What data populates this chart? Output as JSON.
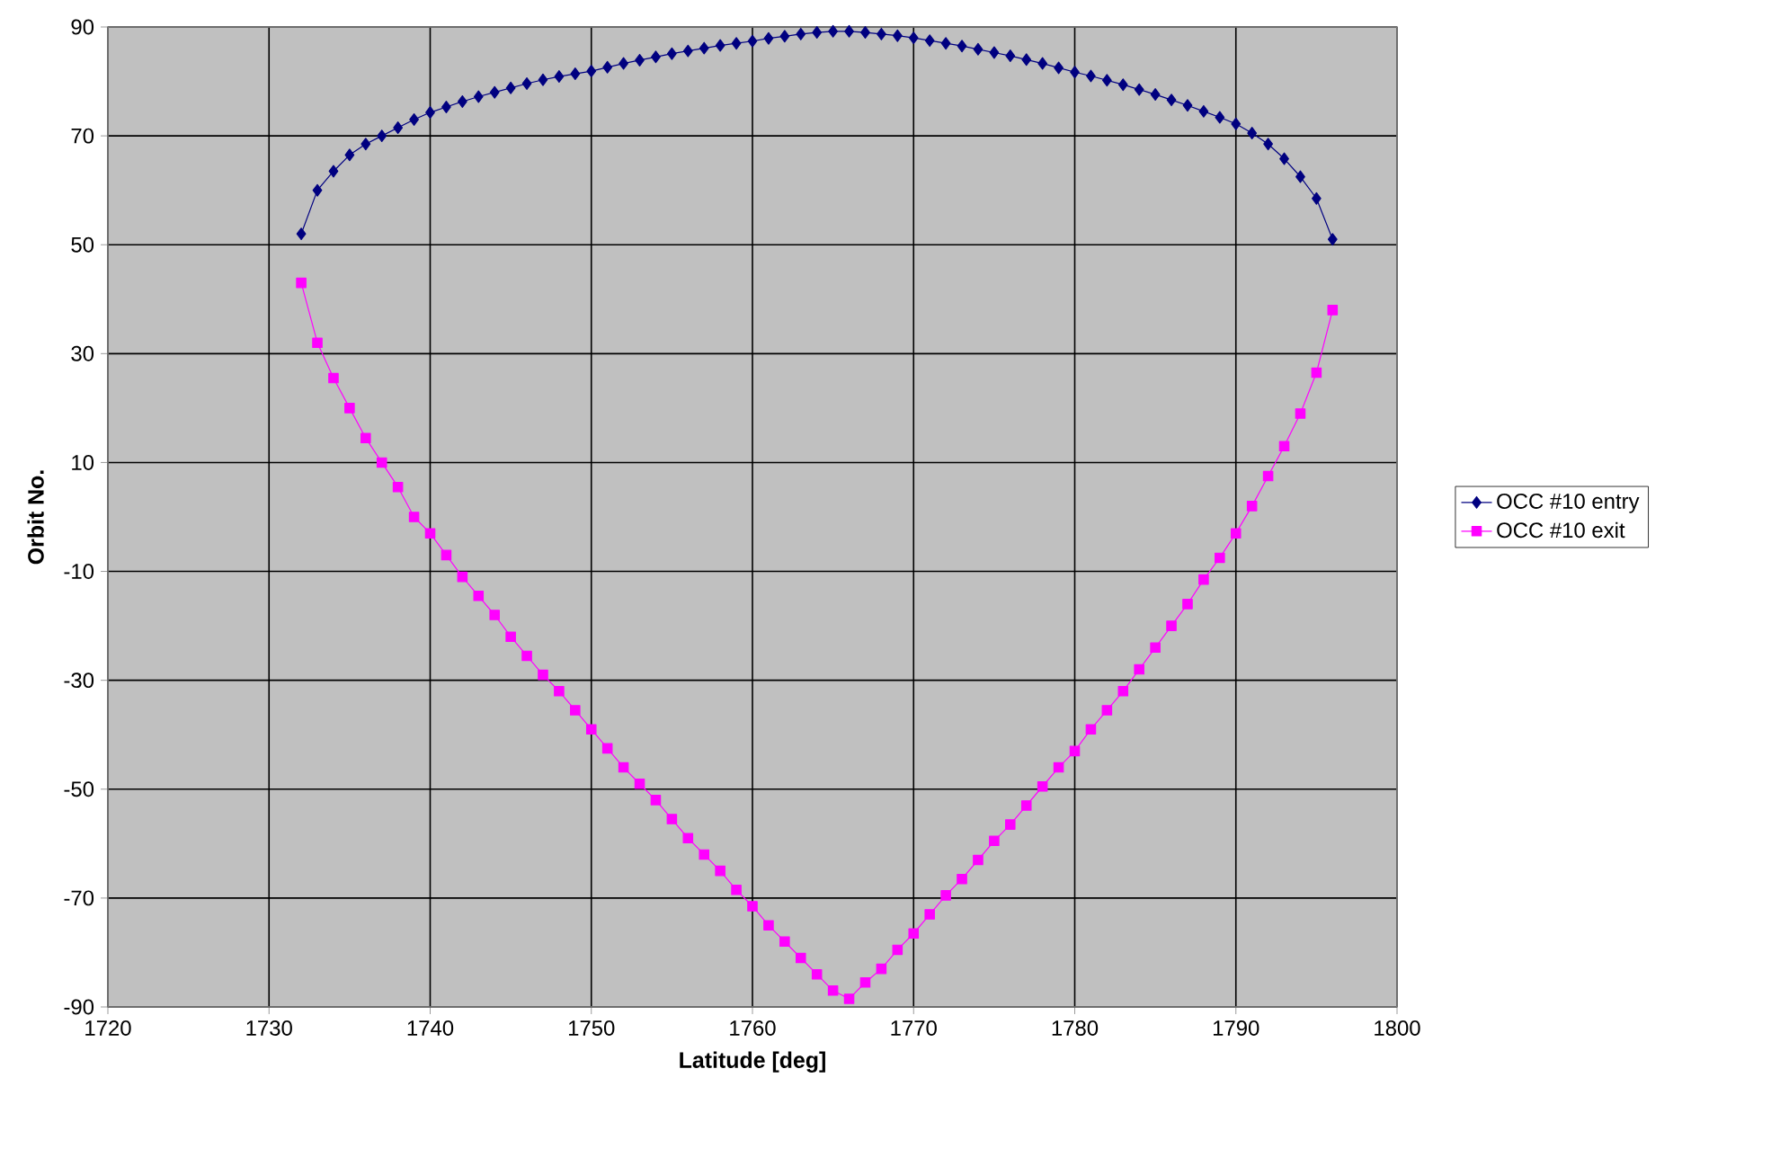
{
  "chart_data": {
    "type": "line",
    "xlabel": "Latitude [deg]",
    "ylabel": "Orbit No.",
    "x": [
      1732,
      1733,
      1734,
      1735,
      1736,
      1737,
      1738,
      1739,
      1740,
      1741,
      1742,
      1743,
      1744,
      1745,
      1746,
      1747,
      1748,
      1749,
      1750,
      1751,
      1752,
      1753,
      1754,
      1755,
      1756,
      1757,
      1758,
      1759,
      1760,
      1761,
      1762,
      1763,
      1764,
      1765,
      1766,
      1767,
      1768,
      1769,
      1770,
      1771,
      1772,
      1773,
      1774,
      1775,
      1776,
      1777,
      1778,
      1779,
      1780,
      1781,
      1782,
      1783,
      1784,
      1785,
      1786,
      1787,
      1788,
      1789,
      1790,
      1791,
      1792,
      1793,
      1794,
      1795,
      1796
    ],
    "series": [
      {
        "name": "OCC #10 entry",
        "color": "#000080",
        "marker": "diamond",
        "values": [
          52,
          60,
          63.5,
          66.5,
          68.5,
          70,
          71.5,
          73,
          74.3,
          75.3,
          76.3,
          77.2,
          78,
          78.8,
          79.6,
          80.3,
          80.9,
          81.4,
          81.9,
          82.6,
          83.3,
          83.9,
          84.5,
          85.1,
          85.6,
          86.1,
          86.6,
          87,
          87.4,
          87.9,
          88.3,
          88.7,
          89,
          89.2,
          89.2,
          89,
          88.7,
          88.4,
          88,
          87.5,
          87,
          86.5,
          85.9,
          85.3,
          84.7,
          84,
          83.3,
          82.5,
          81.7,
          81,
          80.2,
          79.4,
          78.5,
          77.6,
          76.6,
          75.6,
          74.5,
          73.4,
          72.2,
          70.5,
          68.5,
          65.8,
          62.5,
          58.5,
          51
        ]
      },
      {
        "name": "OCC #10 exit",
        "color": "#ff00ff",
        "marker": "square",
        "values": [
          43,
          32,
          25.5,
          20,
          14.5,
          10,
          5.5,
          0,
          -3,
          -7,
          -11,
          -14.5,
          -18,
          -22,
          -25.5,
          -29,
          -32,
          -35.5,
          -39,
          -42.5,
          -46,
          -49,
          -52,
          -55.5,
          -59,
          -62,
          -65,
          -68.5,
          -71.5,
          -75,
          -78,
          -81,
          -84,
          -87,
          -88.5,
          -85.5,
          -83,
          -79.5,
          -76.5,
          -73,
          -69.5,
          -66.5,
          -63,
          -59.5,
          -56.5,
          -53,
          -49.5,
          -46,
          -43,
          -39,
          -35.5,
          -32,
          -28,
          -24,
          -20,
          -16,
          -11.5,
          -7.5,
          -3,
          2,
          7.5,
          13,
          19,
          26.5,
          38
        ]
      }
    ],
    "xlim": [
      1720,
      1800
    ],
    "xticks": [
      1720,
      1730,
      1740,
      1750,
      1760,
      1770,
      1780,
      1790,
      1800
    ],
    "ylim": [
      -90,
      90
    ],
    "yticks": [
      -90,
      -70,
      -50,
      -30,
      -10,
      10,
      30,
      50,
      70,
      90
    ],
    "grid": true,
    "legend": "right",
    "line_style": "solid"
  }
}
